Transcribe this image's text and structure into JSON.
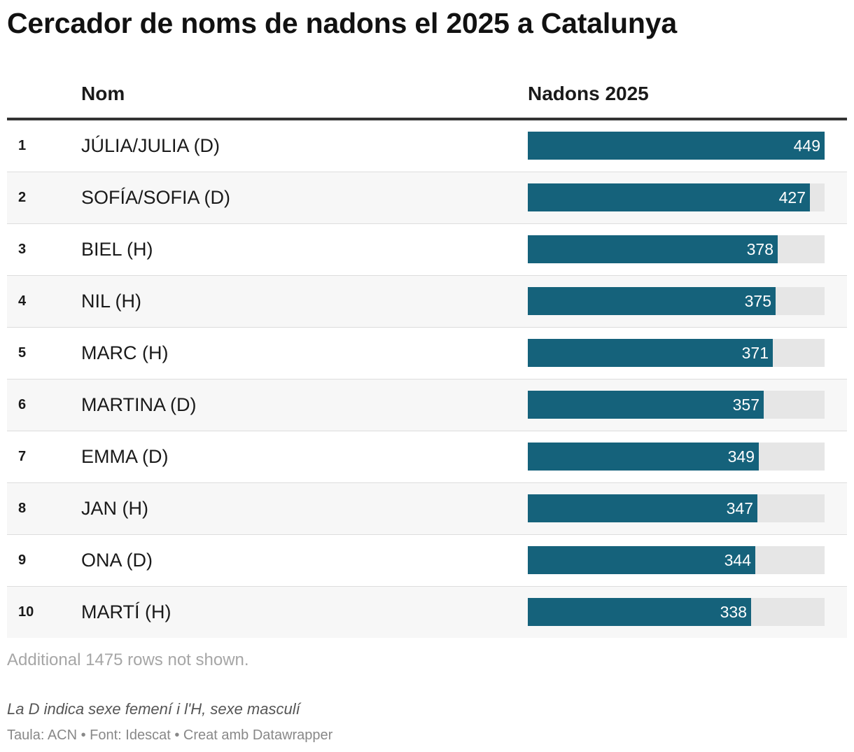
{
  "title": "Cercador de noms de nadons el 2025 a Catalunya",
  "header": {
    "name_label": "Nom",
    "value_label": "Nadons 2025"
  },
  "colors": {
    "bar": "#15627b",
    "track": "#e6e6e6",
    "alt_row": "#f7f7f7"
  },
  "chart_data": {
    "type": "table",
    "columns": [
      "",
      "Nom",
      "Nadons 2025"
    ],
    "max_value": 449,
    "rows": [
      {
        "rank": "1",
        "name": "JÚLIA/JULIA (D)",
        "value": 449
      },
      {
        "rank": "2",
        "name": "SOFÍA/SOFIA (D)",
        "value": 427
      },
      {
        "rank": "3",
        "name": "BIEL (H)",
        "value": 378
      },
      {
        "rank": "4",
        "name": "NIL (H)",
        "value": 375
      },
      {
        "rank": "5",
        "name": "MARC (H)",
        "value": 371
      },
      {
        "rank": "6",
        "name": "MARTINA (D)",
        "value": 357
      },
      {
        "rank": "7",
        "name": "EMMA (D)",
        "value": 349
      },
      {
        "rank": "8",
        "name": "JAN (H)",
        "value": 347
      },
      {
        "rank": "9",
        "name": "ONA (D)",
        "value": 344
      },
      {
        "rank": "10",
        "name": "MARTÍ (H)",
        "value": 338
      }
    ]
  },
  "more_rows_text": "Additional 1475 rows not shown.",
  "note": "La D indica sexe femení i l'H, sexe masculí",
  "source": "Taula: ACN • Font: Idescat • Creat amb Datawrapper"
}
